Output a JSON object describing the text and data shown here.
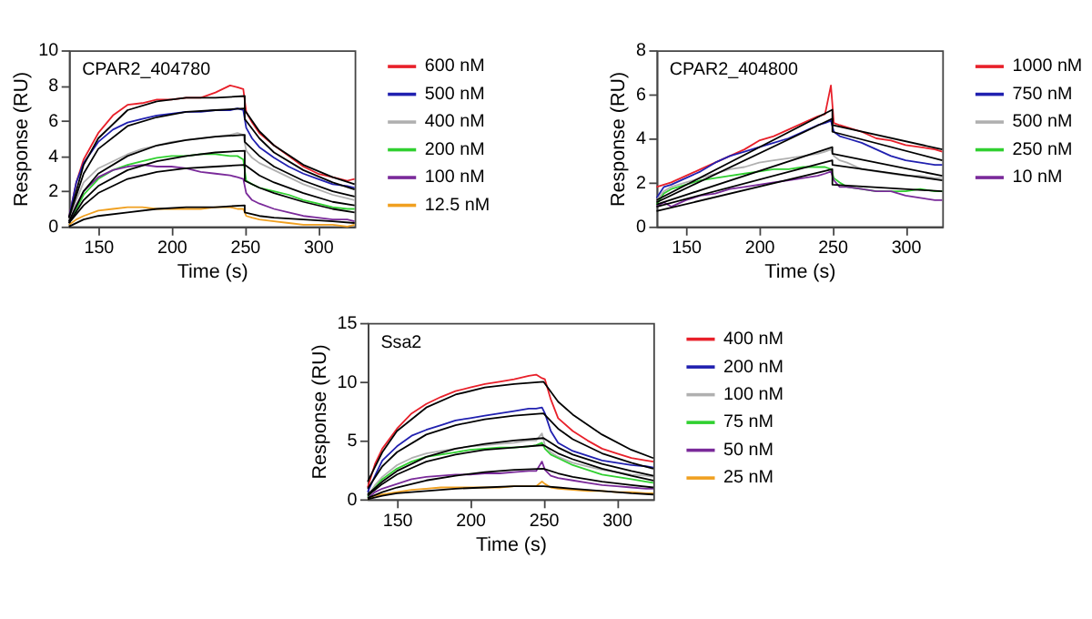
{
  "chart_data": [
    {
      "type": "line",
      "title": "CPAR2_404780",
      "xlabel": "Time (s)",
      "ylabel": "Response (RU)",
      "xlim": [
        130,
        325
      ],
      "xticks": [
        150,
        200,
        250,
        300
      ],
      "ylim": [
        0,
        10
      ],
      "yticks": [
        0,
        2,
        4,
        6,
        8,
        10
      ],
      "grid": false,
      "legend": "right",
      "x": [
        130,
        135,
        140,
        150,
        160,
        170,
        180,
        190,
        200,
        210,
        220,
        230,
        240,
        245,
        249,
        251,
        255,
        260,
        270,
        280,
        290,
        300,
        310,
        320,
        325
      ],
      "series": [
        {
          "name": "600 nM",
          "color": "#e8202a",
          "values": [
            0.5,
            2.5,
            3.8,
            5.3,
            6.3,
            6.9,
            7.0,
            7.2,
            7.2,
            7.3,
            7.3,
            7.6,
            8.0,
            7.9,
            7.8,
            6.5,
            5.9,
            5.3,
            4.6,
            4.0,
            3.4,
            3.0,
            2.8,
            2.6,
            2.7
          ]
        },
        {
          "name": "500 nM",
          "color": "#2020b0",
          "values": [
            0.5,
            2.5,
            3.6,
            4.8,
            5.5,
            5.9,
            6.1,
            6.3,
            6.4,
            6.5,
            6.5,
            6.6,
            6.6,
            6.7,
            6.6,
            5.6,
            5.0,
            4.5,
            3.9,
            3.4,
            3.0,
            2.7,
            2.4,
            2.3,
            2.2
          ]
        },
        {
          "name": "400 nM",
          "color": "#b0b0b0",
          "values": [
            0.3,
            1.5,
            2.5,
            3.3,
            3.7,
            4.1,
            4.4,
            4.6,
            4.8,
            4.9,
            5.0,
            5.1,
            5.2,
            5.3,
            5.2,
            4.3,
            3.9,
            3.6,
            3.2,
            2.8,
            2.4,
            2.1,
            1.8,
            1.6,
            1.5
          ]
        },
        {
          "name": "200 nM",
          "color": "#30d030",
          "values": [
            0.2,
            1.0,
            1.8,
            2.7,
            3.2,
            3.5,
            3.7,
            3.9,
            4.0,
            4.0,
            4.1,
            4.1,
            4.0,
            4.0,
            3.8,
            2.6,
            2.4,
            2.2,
            2.0,
            1.8,
            1.5,
            1.3,
            1.1,
            1.0,
            1.0
          ]
        },
        {
          "name": "100 nM",
          "color": "#7a2a9a",
          "values": [
            0.2,
            1.2,
            2.0,
            2.8,
            3.2,
            3.4,
            3.5,
            3.4,
            3.4,
            3.3,
            3.1,
            3.0,
            2.9,
            2.8,
            2.7,
            1.9,
            1.5,
            1.3,
            1.0,
            0.8,
            0.6,
            0.5,
            0.4,
            0.4,
            0.3
          ]
        },
        {
          "name": "12.5 nM",
          "color": "#f0a020",
          "values": [
            0.1,
            0.4,
            0.6,
            0.9,
            1.0,
            1.1,
            1.1,
            1.0,
            1.0,
            1.0,
            1.0,
            1.1,
            1.1,
            1.0,
            1.0,
            0.6,
            0.5,
            0.4,
            0.3,
            0.2,
            0.1,
            0.1,
            0.1,
            0.0,
            0.1
          ]
        },
        {
          "color": "#000000",
          "x": [
            130,
            140,
            150,
            170,
            190,
            210,
            230,
            250,
            250,
            260,
            270,
            290,
            310,
            325
          ],
          "values": [
            0.5,
            3.5,
            5.0,
            6.6,
            7.1,
            7.3,
            7.3,
            7.4,
            6.6,
            5.4,
            4.6,
            3.5,
            2.8,
            2.4
          ]
        },
        {
          "color": "#000000",
          "x": [
            130,
            140,
            150,
            170,
            190,
            210,
            230,
            250,
            250,
            260,
            270,
            290,
            310,
            325
          ],
          "values": [
            0.5,
            3.0,
            4.4,
            5.7,
            6.2,
            6.5,
            6.6,
            6.7,
            6.1,
            5.0,
            4.2,
            3.2,
            2.5,
            2.1
          ]
        },
        {
          "color": "#000000",
          "x": [
            130,
            140,
            150,
            170,
            190,
            210,
            230,
            250,
            250,
            260,
            270,
            290,
            310,
            325
          ],
          "values": [
            0.3,
            2.0,
            3.0,
            4.0,
            4.6,
            4.9,
            5.1,
            5.2,
            4.8,
            4.0,
            3.4,
            2.6,
            2.0,
            1.7
          ]
        },
        {
          "color": "#000000",
          "x": [
            130,
            140,
            150,
            170,
            190,
            210,
            230,
            250,
            250,
            260,
            270,
            290,
            310,
            325
          ],
          "values": [
            0.2,
            1.5,
            2.3,
            3.2,
            3.7,
            4.0,
            4.2,
            4.3,
            3.5,
            2.9,
            2.5,
            1.9,
            1.4,
            1.2
          ]
        },
        {
          "color": "#000000",
          "x": [
            130,
            140,
            150,
            170,
            190,
            210,
            230,
            250,
            250,
            260,
            270,
            290,
            310,
            325
          ],
          "values": [
            0.2,
            1.2,
            1.9,
            2.7,
            3.1,
            3.3,
            3.4,
            3.5,
            2.6,
            2.2,
            1.9,
            1.4,
            1.0,
            0.8
          ]
        },
        {
          "color": "#000000",
          "x": [
            130,
            140,
            150,
            170,
            190,
            210,
            230,
            250,
            250,
            260,
            270,
            290,
            310,
            325
          ],
          "values": [
            0.0,
            0.4,
            0.6,
            0.8,
            1.0,
            1.1,
            1.1,
            1.2,
            0.8,
            0.6,
            0.5,
            0.4,
            0.3,
            0.2
          ]
        }
      ]
    },
    {
      "type": "line",
      "title": "CPAR2_404800",
      "xlabel": "Time (s)",
      "ylabel": "Response (RU)",
      "xlim": [
        130,
        325
      ],
      "xticks": [
        150,
        200,
        250,
        300
      ],
      "ylim": [
        0,
        8
      ],
      "yticks": [
        0,
        2,
        4,
        6,
        8
      ],
      "grid": false,
      "legend": "right",
      "x": [
        130,
        135,
        140,
        150,
        160,
        170,
        180,
        190,
        200,
        210,
        220,
        230,
        240,
        245,
        249,
        251,
        255,
        260,
        270,
        280,
        290,
        300,
        310,
        320,
        325
      ],
      "series": [
        {
          "name": "1000 nM",
          "color": "#e8202a",
          "values": [
            1.8,
            1.9,
            2.0,
            2.3,
            2.6,
            2.9,
            3.2,
            3.5,
            3.9,
            4.1,
            4.4,
            4.7,
            5.0,
            5.1,
            6.4,
            4.7,
            4.6,
            4.5,
            4.3,
            4.0,
            3.9,
            3.7,
            3.6,
            3.5,
            3.4
          ]
        },
        {
          "name": "750 nM",
          "color": "#2020b0",
          "values": [
            1.3,
            1.8,
            1.9,
            2.2,
            2.5,
            2.9,
            3.2,
            3.4,
            3.6,
            3.8,
            4.0,
            4.3,
            4.6,
            4.7,
            4.8,
            4.3,
            4.1,
            4.0,
            3.8,
            3.5,
            3.2,
            3.0,
            2.9,
            2.8,
            2.8
          ]
        },
        {
          "name": "500 nM",
          "color": "#b0b0b0",
          "values": [
            1.2,
            1.6,
            1.8,
            2.0,
            2.2,
            2.4,
            2.6,
            2.7,
            2.9,
            3.0,
            3.1,
            3.2,
            3.3,
            3.4,
            3.5,
            3.2,
            3.0,
            2.9,
            2.6,
            2.5,
            2.4,
            2.3,
            2.3,
            2.2,
            2.2
          ]
        },
        {
          "name": "250 nM",
          "color": "#30d030",
          "values": [
            1.0,
            1.5,
            1.7,
            1.9,
            2.1,
            2.2,
            2.3,
            2.4,
            2.5,
            2.6,
            2.6,
            2.7,
            2.7,
            2.7,
            2.6,
            2.2,
            2.0,
            1.8,
            1.7,
            1.6,
            1.6,
            1.6,
            1.7,
            1.6,
            1.6
          ]
        },
        {
          "name": "10 nM",
          "color": "#7a2a9a",
          "values": [
            0.9,
            1.1,
            0.9,
            1.2,
            1.4,
            1.5,
            1.7,
            1.8,
            1.9,
            2.0,
            2.1,
            2.2,
            2.3,
            2.4,
            2.5,
            2.1,
            1.8,
            1.8,
            1.7,
            1.6,
            1.6,
            1.4,
            1.3,
            1.2,
            1.2
          ]
        },
        {
          "color": "#000000",
          "x": [
            130,
            250,
            250,
            325
          ],
          "values": [
            1.2,
            5.3,
            4.6,
            3.5
          ]
        },
        {
          "color": "#000000",
          "x": [
            130,
            250,
            250,
            325
          ],
          "values": [
            1.1,
            4.9,
            4.3,
            3.0
          ]
        },
        {
          "color": "#000000",
          "x": [
            130,
            250,
            250,
            325
          ],
          "values": [
            1.0,
            3.6,
            3.3,
            2.3
          ]
        },
        {
          "color": "#000000",
          "x": [
            130,
            250,
            250,
            325
          ],
          "values": [
            0.9,
            3.0,
            2.8,
            2.1
          ]
        },
        {
          "color": "#000000",
          "x": [
            130,
            250,
            250,
            325
          ],
          "values": [
            0.7,
            2.6,
            1.9,
            1.6
          ]
        }
      ]
    },
    {
      "type": "line",
      "title": "Ssa2",
      "xlabel": "Time (s)",
      "ylabel": "Response (RU)",
      "xlim": [
        130,
        325
      ],
      "xticks": [
        150,
        200,
        250,
        300
      ],
      "ylim": [
        0,
        15
      ],
      "yticks": [
        0,
        5,
        10,
        15
      ],
      "grid": false,
      "legend": "right",
      "x": [
        130,
        135,
        140,
        150,
        160,
        170,
        180,
        190,
        200,
        210,
        220,
        230,
        240,
        245,
        249,
        251,
        255,
        260,
        270,
        280,
        290,
        300,
        310,
        320,
        325
      ],
      "series": [
        {
          "name": "400 nM",
          "color": "#e8202a",
          "values": [
            1.0,
            3.0,
            4.3,
            6.0,
            7.3,
            8.1,
            8.7,
            9.2,
            9.5,
            9.8,
            10.0,
            10.2,
            10.5,
            10.6,
            10.3,
            10.2,
            8.5,
            6.9,
            5.8,
            5.0,
            4.3,
            3.9,
            3.5,
            3.3,
            3.2
          ]
        },
        {
          "name": "200 nM",
          "color": "#2020b0",
          "values": [
            0.6,
            2.0,
            3.3,
            4.5,
            5.4,
            5.9,
            6.3,
            6.7,
            6.9,
            7.1,
            7.3,
            7.5,
            7.7,
            7.7,
            7.8,
            7.3,
            5.8,
            4.8,
            4.1,
            3.7,
            3.3,
            3.1,
            2.9,
            2.8,
            2.7
          ]
        },
        {
          "name": "100 nM",
          "color": "#b0b0b0",
          "values": [
            0.3,
            1.2,
            1.9,
            2.9,
            3.5,
            3.9,
            4.1,
            4.3,
            4.5,
            4.6,
            4.7,
            4.8,
            5.0,
            5.0,
            5.6,
            4.6,
            4.0,
            3.6,
            3.1,
            2.8,
            2.5,
            2.3,
            2.1,
            2.0,
            1.9
          ]
        },
        {
          "name": "75 nM",
          "color": "#30d030",
          "values": [
            0.2,
            1.0,
            1.7,
            2.6,
            3.2,
            3.6,
            3.8,
            4.0,
            4.2,
            4.3,
            4.4,
            4.4,
            4.5,
            4.6,
            4.8,
            4.3,
            3.8,
            3.5,
            2.9,
            2.5,
            2.1,
            1.9,
            1.7,
            1.5,
            1.4
          ]
        },
        {
          "name": "50 nM",
          "color": "#7a2a9a",
          "values": [
            0.1,
            0.6,
            0.9,
            1.3,
            1.7,
            1.9,
            2.0,
            2.1,
            2.1,
            2.2,
            2.2,
            2.3,
            2.4,
            2.4,
            3.2,
            2.5,
            2.0,
            1.8,
            1.6,
            1.4,
            1.2,
            1.1,
            1.0,
            0.9,
            0.9
          ]
        },
        {
          "name": "25 nM",
          "color": "#f0a020",
          "values": [
            0.0,
            0.3,
            0.4,
            0.6,
            0.8,
            0.9,
            1.0,
            1.0,
            1.0,
            1.0,
            1.0,
            1.1,
            1.1,
            1.1,
            1.5,
            1.3,
            1.0,
            0.9,
            0.8,
            0.7,
            0.7,
            0.6,
            0.6,
            0.5,
            0.5
          ]
        },
        {
          "color": "#000000",
          "x": [
            130,
            140,
            150,
            170,
            190,
            210,
            230,
            250,
            260,
            270,
            290,
            310,
            325
          ],
          "values": [
            1.5,
            4.0,
            5.8,
            7.8,
            8.9,
            9.5,
            9.8,
            10.0,
            8.3,
            7.2,
            5.5,
            4.2,
            3.5
          ]
        },
        {
          "color": "#000000",
          "x": [
            130,
            140,
            150,
            170,
            190,
            210,
            230,
            250,
            260,
            270,
            290,
            310,
            325
          ],
          "values": [
            0.9,
            2.8,
            4.0,
            5.5,
            6.3,
            6.8,
            7.1,
            7.3,
            6.0,
            5.1,
            3.9,
            3.1,
            2.6
          ]
        },
        {
          "color": "#000000",
          "x": [
            130,
            140,
            150,
            170,
            190,
            210,
            230,
            250,
            260,
            270,
            290,
            310,
            325
          ],
          "values": [
            0.4,
            1.5,
            2.4,
            3.6,
            4.3,
            4.7,
            5.0,
            5.2,
            4.4,
            3.8,
            3.0,
            2.4,
            2.0
          ]
        },
        {
          "color": "#000000",
          "x": [
            130,
            140,
            150,
            170,
            190,
            210,
            230,
            250,
            260,
            270,
            290,
            310,
            325
          ],
          "values": [
            0.3,
            1.3,
            2.1,
            3.2,
            3.8,
            4.2,
            4.4,
            4.6,
            3.9,
            3.4,
            2.6,
            2.0,
            1.6
          ]
        },
        {
          "color": "#000000",
          "x": [
            130,
            140,
            150,
            170,
            190,
            210,
            230,
            250,
            260,
            270,
            290,
            310,
            325
          ],
          "values": [
            0.1,
            0.6,
            1.0,
            1.6,
            2.0,
            2.3,
            2.5,
            2.6,
            2.2,
            1.9,
            1.5,
            1.2,
            1.0
          ]
        },
        {
          "color": "#000000",
          "x": [
            130,
            140,
            150,
            170,
            190,
            210,
            230,
            250,
            260,
            270,
            290,
            310,
            325
          ],
          "values": [
            0.0,
            0.3,
            0.5,
            0.7,
            0.9,
            1.0,
            1.1,
            1.1,
            1.0,
            0.9,
            0.7,
            0.5,
            0.4
          ]
        }
      ]
    }
  ]
}
